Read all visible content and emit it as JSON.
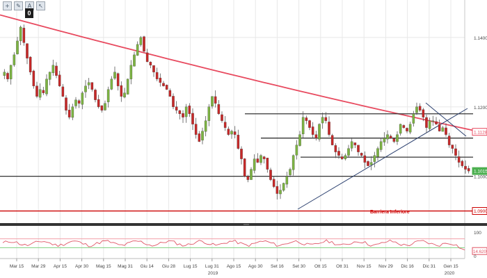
{
  "toolbar": {
    "tools": [
      {
        "name": "crosshair-tool-button",
        "icon": "crosshair-icon",
        "glyph": "+"
      },
      {
        "name": "pencil-tool-button",
        "icon": "pencil-icon",
        "glyph": "✎"
      },
      {
        "name": "text-tool-button",
        "icon": "text-icon",
        "glyph": "A"
      },
      {
        "name": "cursor-tool-button",
        "icon": "cursor-icon",
        "glyph": "↖"
      }
    ],
    "counter_badge": "0"
  },
  "colors": {
    "bull": "#7cb342",
    "bear": "#c62828",
    "ma": "#e84a5f",
    "support": "#cc0000",
    "oscillator": "#e05565",
    "grid": "#e8e8e8",
    "trend": "#2a3f6e",
    "price_tag": "#4caf50"
  },
  "chart_data": {
    "type": "candlestick",
    "instrument_axis_labels": [
      "1.1400",
      "1.1200",
      "1.1000"
    ],
    "x_tick_labels": [
      "Mar 15",
      "Mar 29",
      "Apr 15",
      "Apr 30",
      "Mag 15",
      "Mag 31",
      "Giu 14",
      "Giu 28",
      "Lug 15",
      "Lug 31",
      "Ago 15",
      "Ago 30",
      "Set 16",
      "Set 30",
      "Ott 15",
      "Ott 31",
      "Nov 15",
      "Nov 29",
      "Dic 16",
      "Dic 31",
      "Gen 15"
    ],
    "year_labels": [
      "2019",
      "2020"
    ],
    "ylim": [
      1.0875,
      1.15
    ],
    "moving_average": {
      "start": 1.1465,
      "mid": 1.1287,
      "end": 1.1128
    },
    "horizontal_levels": [
      1.118,
      1.111,
      1.1055,
      1.1
    ],
    "support_level": {
      "value": 1.09,
      "label": "Barriera Inferiore"
    },
    "price_tags": [
      {
        "value": "1.1128",
        "style": "ma"
      },
      {
        "value": "1.1015",
        "style": "last"
      },
      {
        "value": "1.0900",
        "style": "support"
      }
    ],
    "oscillator": {
      "axis_labels": [
        "100",
        "0"
      ],
      "tag": "14.6209",
      "levels": [
        70,
        30
      ]
    },
    "closes": [
      1.13,
      1.128,
      1.132,
      1.135,
      1.139,
      1.143,
      1.1385,
      1.134,
      1.13,
      1.126,
      1.123,
      1.125,
      1.124,
      1.128,
      1.13,
      1.132,
      1.129,
      1.126,
      1.123,
      1.119,
      1.117,
      1.12,
      1.122,
      1.121,
      1.124,
      1.126,
      1.127,
      1.125,
      1.122,
      1.12,
      1.119,
      1.121,
      1.125,
      1.128,
      1.13,
      1.126,
      1.123,
      1.124,
      1.128,
      1.132,
      1.135,
      1.138,
      1.14,
      1.136,
      1.133,
      1.132,
      1.13,
      1.128,
      1.127,
      1.126,
      1.125,
      1.123,
      1.12,
      1.119,
      1.118,
      1.117,
      1.12,
      1.118,
      1.115,
      1.112,
      1.11,
      1.113,
      1.116,
      1.12,
      1.123,
      1.121,
      1.118,
      1.116,
      1.114,
      1.112,
      1.113,
      1.112,
      1.108,
      1.105,
      1.1,
      1.099,
      1.102,
      1.105,
      1.104,
      1.106,
      1.105,
      1.102,
      1.099,
      1.097,
      1.095,
      1.096,
      1.098,
      1.1,
      1.102,
      1.106,
      1.109,
      1.112,
      1.117,
      1.116,
      1.114,
      1.112,
      1.111,
      1.115,
      1.117,
      1.116,
      1.112,
      1.109,
      1.107,
      1.106,
      1.105,
      1.106,
      1.108,
      1.11,
      1.109,
      1.107,
      1.106,
      1.104,
      1.103,
      1.104,
      1.106,
      1.108,
      1.11,
      1.111,
      1.112,
      1.111,
      1.11,
      1.112,
      1.115,
      1.114,
      1.113,
      1.115,
      1.118,
      1.12,
      1.119,
      1.117,
      1.114,
      1.116,
      1.116,
      1.115,
      1.113,
      1.114,
      1.112,
      1.109,
      1.108,
      1.106,
      1.104,
      1.103,
      1.102,
      1.1015
    ]
  }
}
